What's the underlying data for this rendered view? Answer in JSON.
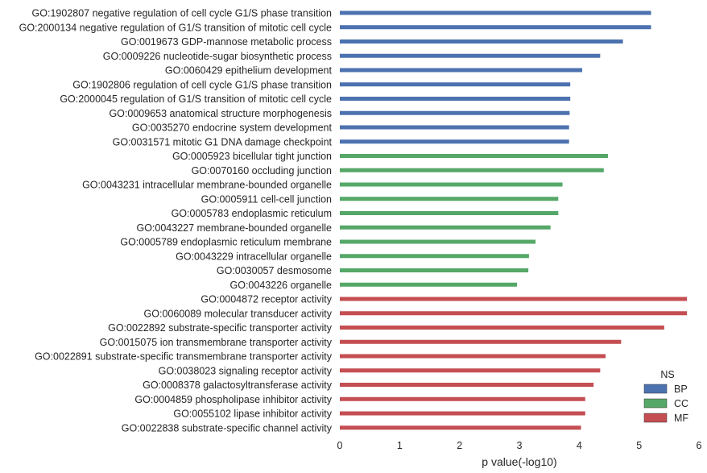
{
  "chart_data": {
    "type": "bar",
    "orientation": "horizontal",
    "xlabel": "p value(-log10)",
    "ylabel": "",
    "xlim": [
      0,
      6
    ],
    "xticks": [
      "0",
      "1",
      "2",
      "3",
      "4",
      "5",
      "6"
    ],
    "grid": false,
    "legend": {
      "title": "NS",
      "placement": "bottom-right",
      "entries": [
        {
          "name": "BP",
          "color": "#4c72b0"
        },
        {
          "name": "CC",
          "color": "#55a868"
        },
        {
          "name": "MF",
          "color": "#c44e52"
        }
      ]
    },
    "bars": [
      {
        "label": "GO:1902807 negative regulation of cell cycle G1/S phase transition",
        "value": 5.2,
        "group": "BP"
      },
      {
        "label": "GO:2000134 negative regulation of G1/S transition of mitotic cell cycle",
        "value": 5.2,
        "group": "BP"
      },
      {
        "label": "GO:0019673 GDP-mannose metabolic process",
        "value": 4.73,
        "group": "BP"
      },
      {
        "label": "GO:0009226 nucleotide-sugar biosynthetic process",
        "value": 4.35,
        "group": "BP"
      },
      {
        "label": "GO:0060429 epithelium development",
        "value": 4.05,
        "group": "BP"
      },
      {
        "label": "GO:1902806 regulation of cell cycle G1/S phase transition",
        "value": 3.85,
        "group": "BP"
      },
      {
        "label": "GO:2000045 regulation of G1/S transition of mitotic cell cycle",
        "value": 3.85,
        "group": "BP"
      },
      {
        "label": "GO:0009653 anatomical structure morphogenesis",
        "value": 3.84,
        "group": "BP"
      },
      {
        "label": "GO:0035270 endocrine system development",
        "value": 3.83,
        "group": "BP"
      },
      {
        "label": "GO:0031571 mitotic G1 DNA damage checkpoint",
        "value": 3.83,
        "group": "BP"
      },
      {
        "label": "GO:0005923 bicellular tight junction",
        "value": 4.48,
        "group": "CC"
      },
      {
        "label": "GO:0070160 occluding junction",
        "value": 4.41,
        "group": "CC"
      },
      {
        "label": "GO:0043231 intracellular membrane-bounded organelle",
        "value": 3.72,
        "group": "CC"
      },
      {
        "label": "GO:0005911 cell-cell junction",
        "value": 3.65,
        "group": "CC"
      },
      {
        "label": "GO:0005783 endoplasmic reticulum",
        "value": 3.65,
        "group": "CC"
      },
      {
        "label": "GO:0043227 membrane-bounded organelle",
        "value": 3.52,
        "group": "CC"
      },
      {
        "label": "GO:0005789 endoplasmic reticulum membrane",
        "value": 3.27,
        "group": "CC"
      },
      {
        "label": "GO:0043229 intracellular organelle",
        "value": 3.16,
        "group": "CC"
      },
      {
        "label": "GO:0030057 desmosome",
        "value": 3.15,
        "group": "CC"
      },
      {
        "label": "GO:0043226 organelle",
        "value": 2.96,
        "group": "CC"
      },
      {
        "label": "GO:0004872 receptor activity",
        "value": 5.8,
        "group": "MF"
      },
      {
        "label": "GO:0060089 molecular transducer activity",
        "value": 5.8,
        "group": "MF"
      },
      {
        "label": "GO:0022892 substrate-specific transporter activity",
        "value": 5.42,
        "group": "MF"
      },
      {
        "label": "GO:0015075 ion transmembrane transporter activity",
        "value": 4.7,
        "group": "MF"
      },
      {
        "label": "GO:0022891 substrate-specific transmembrane transporter activity",
        "value": 4.44,
        "group": "MF"
      },
      {
        "label": "GO:0038023 signaling receptor activity",
        "value": 4.35,
        "group": "MF"
      },
      {
        "label": "GO:0008378 galactosyltransferase activity",
        "value": 4.24,
        "group": "MF"
      },
      {
        "label": "GO:0004859 phospholipase inhibitor activity",
        "value": 4.1,
        "group": "MF"
      },
      {
        "label": "GO:0055102 lipase inhibitor activity",
        "value": 4.1,
        "group": "MF"
      },
      {
        "label": "GO:0022838 substrate-specific channel activity",
        "value": 4.03,
        "group": "MF"
      }
    ]
  }
}
